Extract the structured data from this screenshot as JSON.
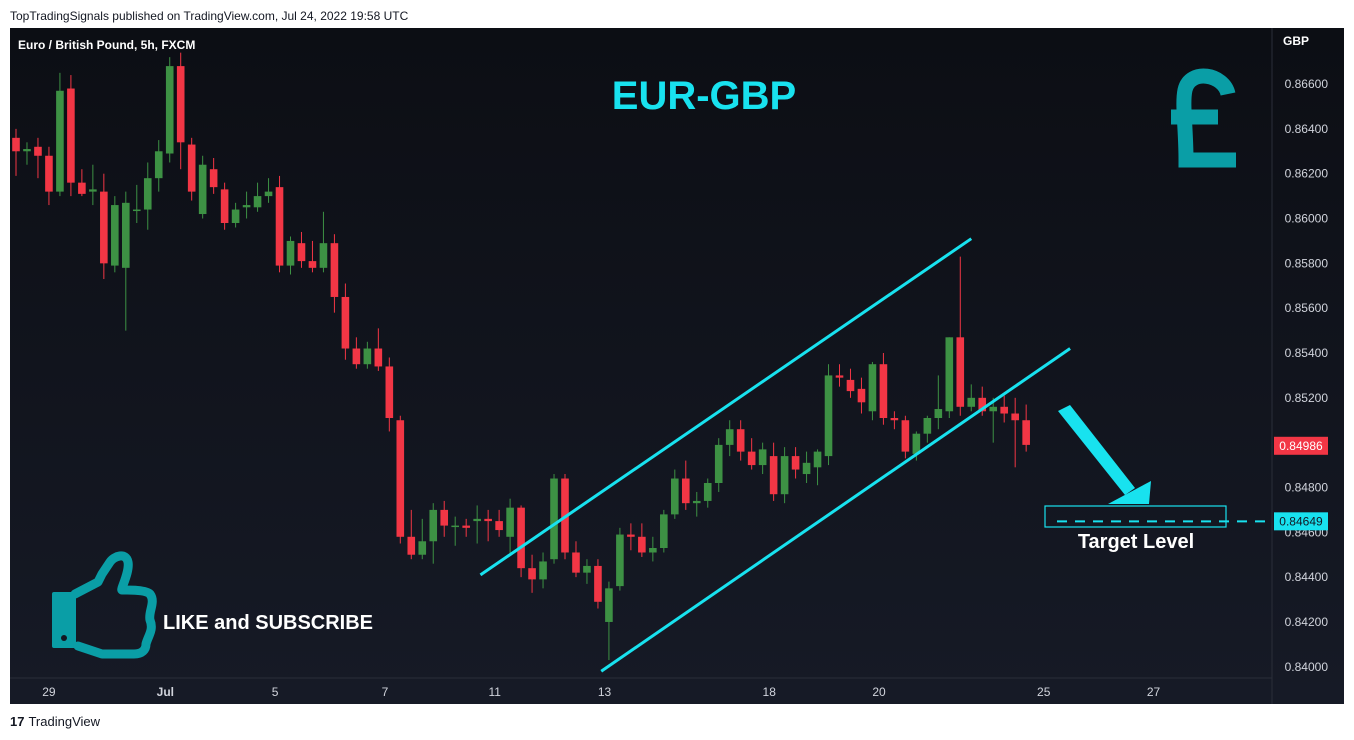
{
  "header": {
    "publish_line": "TopTradingSignals published on TradingView.com, Jul 24, 2022 19:58 UTC"
  },
  "footer": {
    "logo_mark": "17",
    "brand": "TradingView"
  },
  "colors": {
    "up": "#3d9144",
    "down": "#f23645",
    "accent": "#18e2ef",
    "accent_dark": "#0a9ea6",
    "background": "#131722",
    "axis_text": "#d1d4dc"
  },
  "chart_data": {
    "type": "candlestick",
    "symbol_title": "Euro / British Pound, 5h, FXCM",
    "currency": "GBP",
    "headline": "EUR-GBP",
    "ylim": [
      0.8395,
      0.8685
    ],
    "y_ticks": [
      "0.84000",
      "0.84200",
      "0.84400",
      "0.84600",
      "0.84800",
      "0.85000",
      "0.85200",
      "0.85400",
      "0.85600",
      "0.85800",
      "0.86000",
      "0.86200",
      "0.86400",
      "0.86600"
    ],
    "x_ticks": [
      {
        "label": "29",
        "index": 3
      },
      {
        "label": "Jul",
        "index": 13.6
      },
      {
        "label": "5",
        "index": 23.6
      },
      {
        "label": "7",
        "index": 33.6
      },
      {
        "label": "11",
        "index": 43.6
      },
      {
        "label": "13",
        "index": 53.6
      },
      {
        "label": "18",
        "index": 68.6
      },
      {
        "label": "20",
        "index": 78.6
      },
      {
        "label": "25",
        "index": 93.6
      },
      {
        "label": "27",
        "index": 103.6
      }
    ],
    "last_price": "0.84986",
    "target_price": "0.84649",
    "target_label": "Target Level",
    "cta_text": "LIKE and SUBSCRIBE",
    "channel": {
      "lower": [
        [
          53.3,
          0.8398
        ],
        [
          96.0,
          0.8542
        ]
      ],
      "upper": [
        [
          42.3,
          0.8441
        ],
        [
          87.0,
          0.8591
        ]
      ]
    },
    "candles": [
      {
        "o": 0.8636,
        "h": 0.864,
        "l": 0.8619,
        "c": 0.863
      },
      {
        "o": 0.863,
        "h": 0.8634,
        "l": 0.8624,
        "c": 0.8631
      },
      {
        "o": 0.8632,
        "h": 0.8636,
        "l": 0.8618,
        "c": 0.8628
      },
      {
        "o": 0.8628,
        "h": 0.8632,
        "l": 0.8606,
        "c": 0.8612
      },
      {
        "o": 0.8612,
        "h": 0.8665,
        "l": 0.861,
        "c": 0.8657
      },
      {
        "o": 0.8658,
        "h": 0.8664,
        "l": 0.861,
        "c": 0.8616
      },
      {
        "o": 0.8616,
        "h": 0.8622,
        "l": 0.861,
        "c": 0.8611
      },
      {
        "o": 0.8612,
        "h": 0.8624,
        "l": 0.8606,
        "c": 0.8613
      },
      {
        "o": 0.8612,
        "h": 0.862,
        "l": 0.8573,
        "c": 0.858
      },
      {
        "o": 0.8579,
        "h": 0.861,
        "l": 0.8576,
        "c": 0.8606
      },
      {
        "o": 0.8578,
        "h": 0.8612,
        "l": 0.855,
        "c": 0.8607
      },
      {
        "o": 0.8604,
        "h": 0.8615,
        "l": 0.8598,
        "c": 0.8604
      },
      {
        "o": 0.8604,
        "h": 0.8625,
        "l": 0.8595,
        "c": 0.8618
      },
      {
        "o": 0.8618,
        "h": 0.8635,
        "l": 0.8612,
        "c": 0.863
      },
      {
        "o": 0.8629,
        "h": 0.8672,
        "l": 0.8625,
        "c": 0.8668
      },
      {
        "o": 0.8668,
        "h": 0.8674,
        "l": 0.8622,
        "c": 0.8634
      },
      {
        "o": 0.8633,
        "h": 0.8636,
        "l": 0.8608,
        "c": 0.8612
      },
      {
        "o": 0.8602,
        "h": 0.8628,
        "l": 0.86,
        "c": 0.8624
      },
      {
        "o": 0.8622,
        "h": 0.8627,
        "l": 0.8611,
        "c": 0.8614
      },
      {
        "o": 0.8613,
        "h": 0.8616,
        "l": 0.8595,
        "c": 0.8598
      },
      {
        "o": 0.8598,
        "h": 0.8607,
        "l": 0.8596,
        "c": 0.8604
      },
      {
        "o": 0.8605,
        "h": 0.8612,
        "l": 0.86,
        "c": 0.8606
      },
      {
        "o": 0.8605,
        "h": 0.8616,
        "l": 0.8603,
        "c": 0.861
      },
      {
        "o": 0.861,
        "h": 0.8618,
        "l": 0.8607,
        "c": 0.8612
      },
      {
        "o": 0.8614,
        "h": 0.8619,
        "l": 0.8576,
        "c": 0.8579
      },
      {
        "o": 0.8579,
        "h": 0.8592,
        "l": 0.8575,
        "c": 0.859
      },
      {
        "o": 0.8589,
        "h": 0.8594,
        "l": 0.8578,
        "c": 0.8581
      },
      {
        "o": 0.8581,
        "h": 0.859,
        "l": 0.8576,
        "c": 0.8578
      },
      {
        "o": 0.8578,
        "h": 0.8603,
        "l": 0.8576,
        "c": 0.8589
      },
      {
        "o": 0.8589,
        "h": 0.8593,
        "l": 0.8558,
        "c": 0.8565
      },
      {
        "o": 0.8565,
        "h": 0.8571,
        "l": 0.8537,
        "c": 0.8542
      },
      {
        "o": 0.8542,
        "h": 0.8547,
        "l": 0.8533,
        "c": 0.8535
      },
      {
        "o": 0.8535,
        "h": 0.8545,
        "l": 0.8533,
        "c": 0.8542
      },
      {
        "o": 0.8542,
        "h": 0.8551,
        "l": 0.8532,
        "c": 0.8534
      },
      {
        "o": 0.8534,
        "h": 0.8538,
        "l": 0.8505,
        "c": 0.8511
      },
      {
        "o": 0.851,
        "h": 0.8512,
        "l": 0.8455,
        "c": 0.8458
      },
      {
        "o": 0.8458,
        "h": 0.847,
        "l": 0.8448,
        "c": 0.845
      },
      {
        "o": 0.845,
        "h": 0.8466,
        "l": 0.8448,
        "c": 0.8456
      },
      {
        "o": 0.8456,
        "h": 0.8473,
        "l": 0.8446,
        "c": 0.847
      },
      {
        "o": 0.847,
        "h": 0.8474,
        "l": 0.8458,
        "c": 0.8463
      },
      {
        "o": 0.8463,
        "h": 0.8467,
        "l": 0.8454,
        "c": 0.8463
      },
      {
        "o": 0.8463,
        "h": 0.8466,
        "l": 0.8458,
        "c": 0.8462
      },
      {
        "o": 0.8465,
        "h": 0.8472,
        "l": 0.8455,
        "c": 0.8466
      },
      {
        "o": 0.8466,
        "h": 0.847,
        "l": 0.8456,
        "c": 0.8465
      },
      {
        "o": 0.8465,
        "h": 0.847,
        "l": 0.8458,
        "c": 0.8461
      },
      {
        "o": 0.8458,
        "h": 0.8475,
        "l": 0.845,
        "c": 0.8471
      },
      {
        "o": 0.8471,
        "h": 0.8472,
        "l": 0.844,
        "c": 0.8444
      },
      {
        "o": 0.8444,
        "h": 0.845,
        "l": 0.8433,
        "c": 0.8439
      },
      {
        "o": 0.8439,
        "h": 0.8451,
        "l": 0.8435,
        "c": 0.8447
      },
      {
        "o": 0.8448,
        "h": 0.8486,
        "l": 0.8446,
        "c": 0.8484
      },
      {
        "o": 0.8484,
        "h": 0.8486,
        "l": 0.8448,
        "c": 0.8451
      },
      {
        "o": 0.8451,
        "h": 0.8456,
        "l": 0.844,
        "c": 0.8442
      },
      {
        "o": 0.8442,
        "h": 0.8448,
        "l": 0.8437,
        "c": 0.8445
      },
      {
        "o": 0.8445,
        "h": 0.8448,
        "l": 0.8426,
        "c": 0.8429
      },
      {
        "o": 0.842,
        "h": 0.8438,
        "l": 0.8403,
        "c": 0.8435
      },
      {
        "o": 0.8436,
        "h": 0.8462,
        "l": 0.8434,
        "c": 0.8459
      },
      {
        "o": 0.8459,
        "h": 0.8464,
        "l": 0.8452,
        "c": 0.8458
      },
      {
        "o": 0.8458,
        "h": 0.8464,
        "l": 0.8449,
        "c": 0.8451
      },
      {
        "o": 0.8451,
        "h": 0.8458,
        "l": 0.8447,
        "c": 0.8453
      },
      {
        "o": 0.8453,
        "h": 0.847,
        "l": 0.8451,
        "c": 0.8468
      },
      {
        "o": 0.8468,
        "h": 0.8488,
        "l": 0.8466,
        "c": 0.8484
      },
      {
        "o": 0.8484,
        "h": 0.8492,
        "l": 0.847,
        "c": 0.8473
      },
      {
        "o": 0.8473,
        "h": 0.8478,
        "l": 0.8467,
        "c": 0.8474
      },
      {
        "o": 0.8474,
        "h": 0.8484,
        "l": 0.8471,
        "c": 0.8482
      },
      {
        "o": 0.8482,
        "h": 0.8502,
        "l": 0.8478,
        "c": 0.8499
      },
      {
        "o": 0.8499,
        "h": 0.851,
        "l": 0.8494,
        "c": 0.8506
      },
      {
        "o": 0.8506,
        "h": 0.851,
        "l": 0.8492,
        "c": 0.8496
      },
      {
        "o": 0.8496,
        "h": 0.8502,
        "l": 0.8488,
        "c": 0.849
      },
      {
        "o": 0.849,
        "h": 0.85,
        "l": 0.8486,
        "c": 0.8497
      },
      {
        "o": 0.8494,
        "h": 0.85,
        "l": 0.8474,
        "c": 0.8477
      },
      {
        "o": 0.8477,
        "h": 0.8498,
        "l": 0.8473,
        "c": 0.8494
      },
      {
        "o": 0.8494,
        "h": 0.8498,
        "l": 0.8484,
        "c": 0.8488
      },
      {
        "o": 0.8486,
        "h": 0.8496,
        "l": 0.8482,
        "c": 0.8491
      },
      {
        "o": 0.8489,
        "h": 0.8497,
        "l": 0.8481,
        "c": 0.8496
      },
      {
        "o": 0.8494,
        "h": 0.8535,
        "l": 0.849,
        "c": 0.853
      },
      {
        "o": 0.853,
        "h": 0.8535,
        "l": 0.8525,
        "c": 0.8529
      },
      {
        "o": 0.8528,
        "h": 0.8533,
        "l": 0.852,
        "c": 0.8523
      },
      {
        "o": 0.8524,
        "h": 0.8529,
        "l": 0.8513,
        "c": 0.8518
      },
      {
        "o": 0.8514,
        "h": 0.8536,
        "l": 0.851,
        "c": 0.8535
      },
      {
        "o": 0.8535,
        "h": 0.854,
        "l": 0.8508,
        "c": 0.8511
      },
      {
        "o": 0.8511,
        "h": 0.8514,
        "l": 0.8506,
        "c": 0.851
      },
      {
        "o": 0.851,
        "h": 0.8512,
        "l": 0.8493,
        "c": 0.8496
      },
      {
        "o": 0.8495,
        "h": 0.8505,
        "l": 0.8492,
        "c": 0.8504
      },
      {
        "o": 0.8504,
        "h": 0.8512,
        "l": 0.85,
        "c": 0.8511
      },
      {
        "o": 0.8511,
        "h": 0.853,
        "l": 0.8506,
        "c": 0.8515
      },
      {
        "o": 0.8514,
        "h": 0.8547,
        "l": 0.8511,
        "c": 0.8547
      },
      {
        "o": 0.8547,
        "h": 0.8583,
        "l": 0.8512,
        "c": 0.8516
      },
      {
        "o": 0.8516,
        "h": 0.8526,
        "l": 0.8514,
        "c": 0.852
      },
      {
        "o": 0.852,
        "h": 0.8525,
        "l": 0.8512,
        "c": 0.8514
      },
      {
        "o": 0.8514,
        "h": 0.852,
        "l": 0.85,
        "c": 0.8516
      },
      {
        "o": 0.8516,
        "h": 0.8521,
        "l": 0.8509,
        "c": 0.8513
      },
      {
        "o": 0.8513,
        "h": 0.852,
        "l": 0.8489,
        "c": 0.851
      },
      {
        "o": 0.851,
        "h": 0.8517,
        "l": 0.8496,
        "c": 0.8499
      }
    ]
  }
}
